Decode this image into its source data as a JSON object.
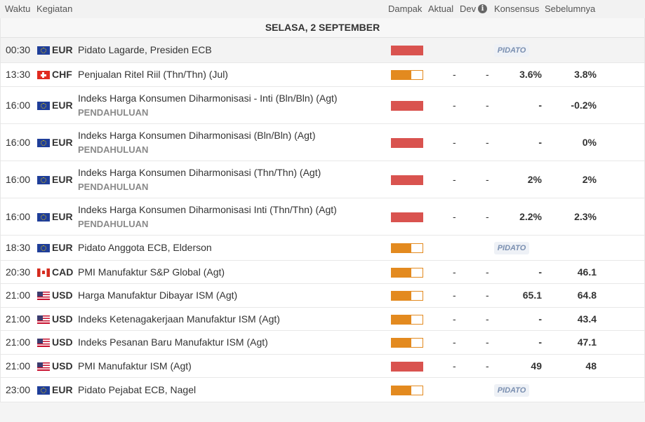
{
  "header": {
    "waktu": "Waktu",
    "kegiatan": "Kegiatan",
    "dampak": "Dampak",
    "aktual": "Aktual",
    "dev": "Dev",
    "konsensus": "Konsensus",
    "sebelumnya": "Sebelumnya"
  },
  "date_label": "SELASA, 2 SEPTEMBER",
  "events": [
    {
      "time": "00:30",
      "currency": "EUR",
      "flag": "eu-flag-icon",
      "title": "Pidato Lagarde, Presiden ECB",
      "sub": "",
      "impact": "high",
      "badge": "PIDATO",
      "aktual": "",
      "dev": "",
      "konsensus": "",
      "sebelumnya": ""
    },
    {
      "time": "13:30",
      "currency": "CHF",
      "flag": "ch-flag-icon",
      "title": "Penjualan Ritel Riil (Thn/Thn) (Jul)",
      "sub": "",
      "impact": "medium",
      "badge": "",
      "aktual": "-",
      "dev": "-",
      "konsensus": "3.6%",
      "sebelumnya": "3.8%"
    },
    {
      "time": "16:00",
      "currency": "EUR",
      "flag": "eu-flag-icon",
      "title": "Indeks Harga Konsumen Diharmonisasi - Inti (Bln/Bln) (Agt)",
      "sub": "PENDAHULUAN",
      "impact": "high",
      "badge": "",
      "aktual": "-",
      "dev": "-",
      "konsensus": "-",
      "sebelumnya": "-0.2%"
    },
    {
      "time": "16:00",
      "currency": "EUR",
      "flag": "eu-flag-icon",
      "title": "Indeks Harga Konsumen Diharmonisasi (Bln/Bln) (Agt)",
      "sub": "PENDAHULUAN",
      "impact": "high",
      "badge": "",
      "aktual": "-",
      "dev": "-",
      "konsensus": "-",
      "sebelumnya": "0%"
    },
    {
      "time": "16:00",
      "currency": "EUR",
      "flag": "eu-flag-icon",
      "title": "Indeks Harga Konsumen Diharmonisasi (Thn/Thn) (Agt)",
      "sub": "PENDAHULUAN",
      "impact": "high",
      "badge": "",
      "aktual": "-",
      "dev": "-",
      "konsensus": "2%",
      "sebelumnya": "2%"
    },
    {
      "time": "16:00",
      "currency": "EUR",
      "flag": "eu-flag-icon",
      "title": "Indeks Harga Konsumen Diharmonisasi Inti (Thn/Thn) (Agt)",
      "sub": "PENDAHULUAN",
      "impact": "high",
      "badge": "",
      "aktual": "-",
      "dev": "-",
      "konsensus": "2.2%",
      "sebelumnya": "2.3%"
    },
    {
      "time": "18:30",
      "currency": "EUR",
      "flag": "eu-flag-icon",
      "title": "Pidato Anggota ECB, Elderson",
      "sub": "",
      "impact": "medium",
      "badge": "PIDATO",
      "aktual": "",
      "dev": "",
      "konsensus": "",
      "sebelumnya": ""
    },
    {
      "time": "20:30",
      "currency": "CAD",
      "flag": "ca-flag-icon",
      "title": "PMI Manufaktur S&P Global (Agt)",
      "sub": "",
      "impact": "medium",
      "badge": "",
      "aktual": "-",
      "dev": "-",
      "konsensus": "-",
      "sebelumnya": "46.1"
    },
    {
      "time": "21:00",
      "currency": "USD",
      "flag": "us-flag-icon",
      "title": "Harga Manufaktur Dibayar ISM (Agt)",
      "sub": "",
      "impact": "medium",
      "badge": "",
      "aktual": "-",
      "dev": "-",
      "konsensus": "65.1",
      "sebelumnya": "64.8"
    },
    {
      "time": "21:00",
      "currency": "USD",
      "flag": "us-flag-icon",
      "title": "Indeks Ketenagakerjaan Manufaktur ISM (Agt)",
      "sub": "",
      "impact": "medium",
      "badge": "",
      "aktual": "-",
      "dev": "-",
      "konsensus": "-",
      "sebelumnya": "43.4"
    },
    {
      "time": "21:00",
      "currency": "USD",
      "flag": "us-flag-icon",
      "title": "Indeks Pesanan Baru Manufaktur ISM (Agt)",
      "sub": "",
      "impact": "medium",
      "badge": "",
      "aktual": "-",
      "dev": "-",
      "konsensus": "-",
      "sebelumnya": "47.1"
    },
    {
      "time": "21:00",
      "currency": "USD",
      "flag": "us-flag-icon",
      "title": "PMI Manufaktur ISM (Agt)",
      "sub": "",
      "impact": "high",
      "badge": "",
      "aktual": "-",
      "dev": "-",
      "konsensus": "49",
      "sebelumnya": "48"
    },
    {
      "time": "23:00",
      "currency": "EUR",
      "flag": "eu-flag-icon",
      "title": "Pidato Pejabat ECB, Nagel",
      "sub": "",
      "impact": "medium",
      "badge": "PIDATO",
      "aktual": "",
      "dev": "",
      "konsensus": "",
      "sebelumnya": ""
    }
  ],
  "colors": {
    "impact_high": "#d9534f",
    "impact_medium": "#e38a1f",
    "badge_text": "#7a8fb0"
  }
}
